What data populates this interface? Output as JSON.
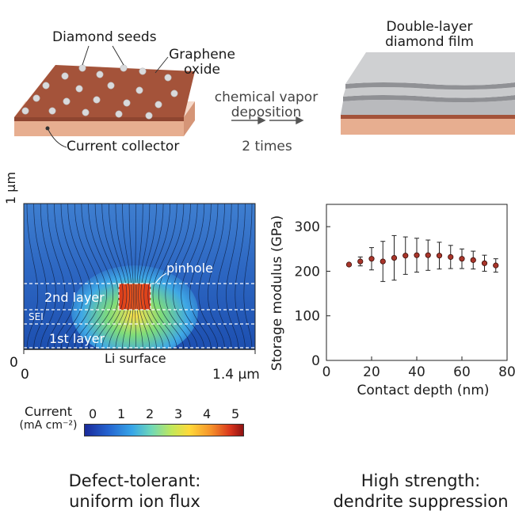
{
  "top": {
    "seeds_label": "Diamond seeds",
    "graphene_label_line1": "Graphene",
    "graphene_label_line2": "oxide",
    "collector_label": "Current collector",
    "process_line1": "chemical vapor",
    "process_line2": "deposition",
    "process_times": "2 times",
    "film_line1": "Double-layer",
    "film_line2": "diamond film",
    "colors": {
      "collector": "#e7ae90",
      "oxide": "#a4533a",
      "film": "#c9cacc",
      "seed": "#d9dadc"
    }
  },
  "flux_map": {
    "y_axis_label": "1 μm",
    "y_zero": "0",
    "x_zero": "0",
    "x_end": "1.4 μm",
    "pinhole_label": "pinhole",
    "layer2_label": "2nd layer",
    "sei_label": "SEI",
    "layer1_label": "1st layer",
    "li_surface_label": "Li surface",
    "colorbar_title_line1": "Current",
    "colorbar_title_line2": "(mA cm⁻²)",
    "colorbar_ticks": [
      "0",
      "1",
      "2",
      "3",
      "4",
      "5"
    ]
  },
  "chart_data": {
    "type": "scatter",
    "xlabel": "Contact depth (nm)",
    "ylabel": "Storage modulus (GPa)",
    "xlim": [
      0,
      80
    ],
    "ylim": [
      0,
      350
    ],
    "x_ticks": [
      "0",
      "20",
      "40",
      "60",
      "80"
    ],
    "y_ticks": [
      "0",
      "100",
      "200",
      "300"
    ],
    "series": [
      {
        "x": [
          10,
          15,
          20,
          25,
          30,
          35,
          40,
          45,
          50,
          55,
          60,
          65,
          70,
          75
        ],
        "values": [
          215,
          222,
          228,
          222,
          230,
          235,
          236,
          236,
          235,
          232,
          228,
          225,
          218,
          213
        ],
        "error": [
          0,
          10,
          25,
          45,
          50,
          42,
          38,
          34,
          30,
          26,
          22,
          20,
          18,
          15
        ]
      }
    ]
  },
  "footer": {
    "left_line1": "Defect-tolerant:",
    "left_line2": "uniform ion flux",
    "right_line1": "High strength:",
    "right_line2": "dendrite suppression"
  }
}
